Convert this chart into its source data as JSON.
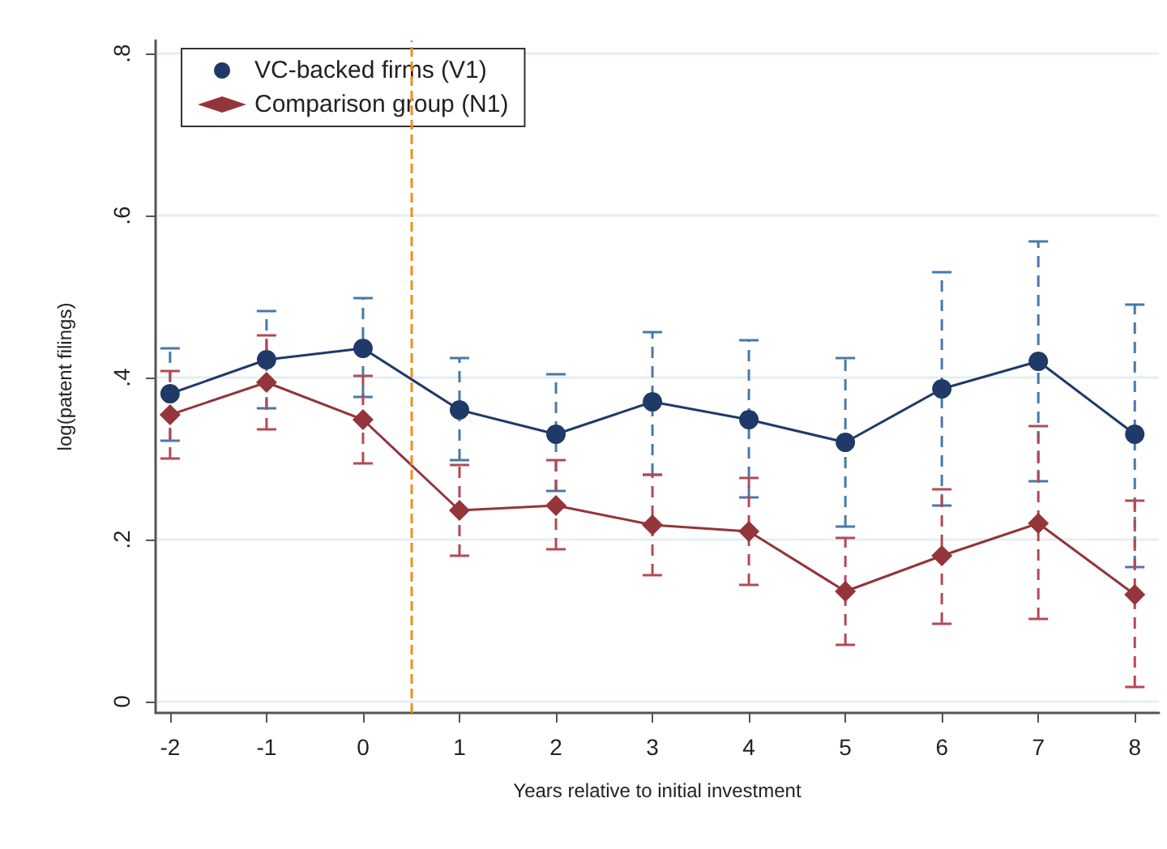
{
  "chart_data": {
    "type": "line",
    "xlabel": "Years relative to initial investment",
    "ylabel": "log(patent filings)",
    "x": [
      -2,
      -1,
      0,
      1,
      2,
      3,
      4,
      5,
      6,
      7,
      8
    ],
    "series": [
      {
        "name": "VC-backed firms (V1)",
        "color": "#1f3a68",
        "marker": "circle",
        "values": [
          0.38,
          0.422,
          0.436,
          0.36,
          0.33,
          0.37,
          0.348,
          0.32,
          0.386,
          0.42,
          0.33
        ],
        "errors": [
          [
            0.322,
            0.436
          ],
          [
            0.362,
            0.482
          ],
          [
            0.376,
            0.498
          ],
          [
            0.298,
            0.424
          ],
          [
            0.26,
            0.404
          ],
          [
            0.28,
            0.456
          ],
          [
            0.252,
            0.446
          ],
          [
            0.216,
            0.424
          ],
          [
            0.242,
            0.53
          ],
          [
            0.272,
            0.568
          ],
          [
            0.166,
            0.49
          ]
        ]
      },
      {
        "name": "Comparison group (N1)",
        "color": "#93353b",
        "marker": "diamond",
        "values": [
          0.354,
          0.394,
          0.348,
          0.236,
          0.242,
          0.218,
          0.21,
          0.136,
          0.18,
          0.22,
          0.132
        ],
        "errors": [
          [
            0.3,
            0.408
          ],
          [
            0.336,
            0.452
          ],
          [
            0.294,
            0.402
          ],
          [
            0.18,
            0.292
          ],
          [
            0.188,
            0.298
          ],
          [
            0.156,
            0.28
          ],
          [
            0.144,
            0.276
          ],
          [
            0.07,
            0.202
          ],
          [
            0.096,
            0.262
          ],
          [
            0.102,
            0.34
          ],
          [
            0.018,
            0.248
          ]
        ]
      }
    ],
    "xlim": [
      -2.15,
      8.25
    ],
    "xticks": [
      -2,
      -1,
      0,
      1,
      2,
      3,
      4,
      5,
      6,
      7,
      8
    ],
    "ylim": [
      -0.014,
      0.816
    ],
    "yticks": [
      {
        "value": 0,
        "label": "0"
      },
      {
        "value": 0.2,
        "label": ".2"
      },
      {
        "value": 0.4,
        "label": ".4"
      },
      {
        "value": 0.6,
        "label": ".6"
      },
      {
        "value": 0.8,
        "label": ".8"
      }
    ],
    "ref_lines": [
      {
        "axis": "x",
        "value": 0.5,
        "color": "#f28e1c",
        "line_style": "dashed"
      }
    ],
    "grid": "y",
    "legend": "top left",
    "line_style": "solid"
  }
}
